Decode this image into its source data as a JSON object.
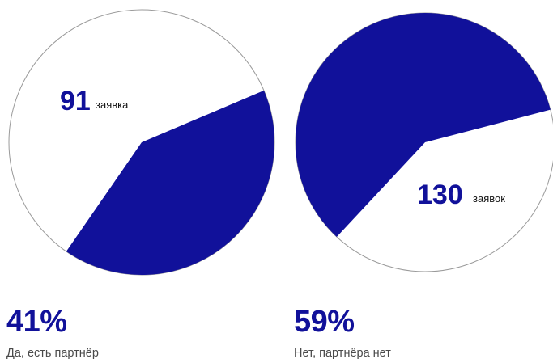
{
  "colors": {
    "accent": "#11119a",
    "outline": "#9a9a9a",
    "text": "#111111",
    "caption": "#4a4a4a"
  },
  "chart_data": [
    {
      "type": "pie",
      "value_label": "91",
      "unit_label": "заявка",
      "percent_label": "41%",
      "caption": "Да, есть партнёр",
      "slices": [
        {
          "label": "Да, есть партнёр",
          "value": 41,
          "highlighted": true
        },
        {
          "label": "",
          "value": 59,
          "highlighted": false
        }
      ]
    },
    {
      "type": "pie",
      "value_label": "130",
      "unit_label": "заявок",
      "percent_label": "59%",
      "caption": "Нет, партнёра нет",
      "slices": [
        {
          "label": "Нет, партнёра нет",
          "value": 59,
          "highlighted": true
        },
        {
          "label": "",
          "value": 41,
          "highlighted": false
        }
      ]
    }
  ]
}
